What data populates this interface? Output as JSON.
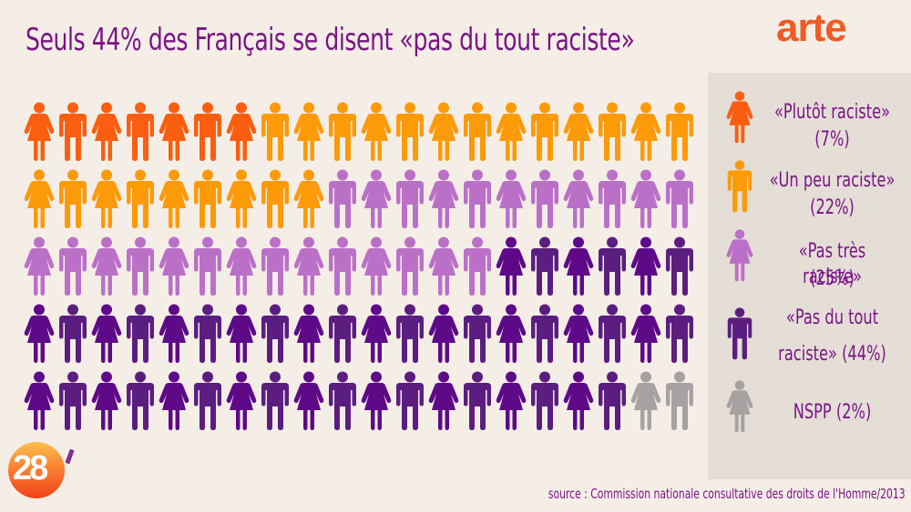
{
  "title": "Seuls 44% des Français se disent «pas du tout raciste»",
  "logo": "arte",
  "badge": {
    "text": "28",
    "tick": "'"
  },
  "source": "source : Commission nationale consultative des droits de l'Homme/2013",
  "colors": {
    "plutot": "#fb5e10",
    "unpeu": "#fd9a08",
    "pastres": "#bb70c8",
    "pasdutout_woman": "#5e0a88",
    "pasdutout_man": "#5b1e80",
    "nspp": "#a7a1a1",
    "title": "#7a1485",
    "background": "#f4eee7",
    "legend_bg": "#e4ded7",
    "logo": "#f05a24"
  },
  "legend": [
    {
      "label": "«Plutôt raciste»",
      "value": "(7%)",
      "icon": "woman-icon",
      "color": "#fb5e10"
    },
    {
      "label": "«Un peu raciste»",
      "value": "(22%)",
      "icon": "man-icon",
      "color": "#fd9a08"
    },
    {
      "label": "«Pas très raciste»",
      "value": "(25%)",
      "icon": "woman-icon",
      "color": "#bb70c8"
    },
    {
      "label": "«Pas du tout",
      "value": "raciste» (44%)",
      "icon": "man-icon",
      "color": "#5b1e80"
    },
    {
      "label": "NSPP (2%)",
      "value": "",
      "icon": "woman-icon",
      "color": "#a7a1a1"
    }
  ],
  "chart_data": {
    "type": "pictogram",
    "title": "Seuls 44% des Français se disent «pas du tout raciste»",
    "grid": {
      "rows": 5,
      "cols": 20,
      "total": 100,
      "pattern": "alternating woman/man starting with woman"
    },
    "categories": [
      "«Plutôt raciste»",
      "«Un peu raciste»",
      "«Pas très raciste»",
      "«Pas du tout raciste»",
      "NSPP"
    ],
    "values": [
      7,
      22,
      25,
      44,
      2
    ],
    "unit": "%",
    "colors": [
      "#fb5e10",
      "#fd9a08",
      "#bb70c8",
      "#5b1e80",
      "#a7a1a1"
    ],
    "source": "Commission nationale consultative des droits de l'Homme/2013",
    "legend_position": "right"
  }
}
